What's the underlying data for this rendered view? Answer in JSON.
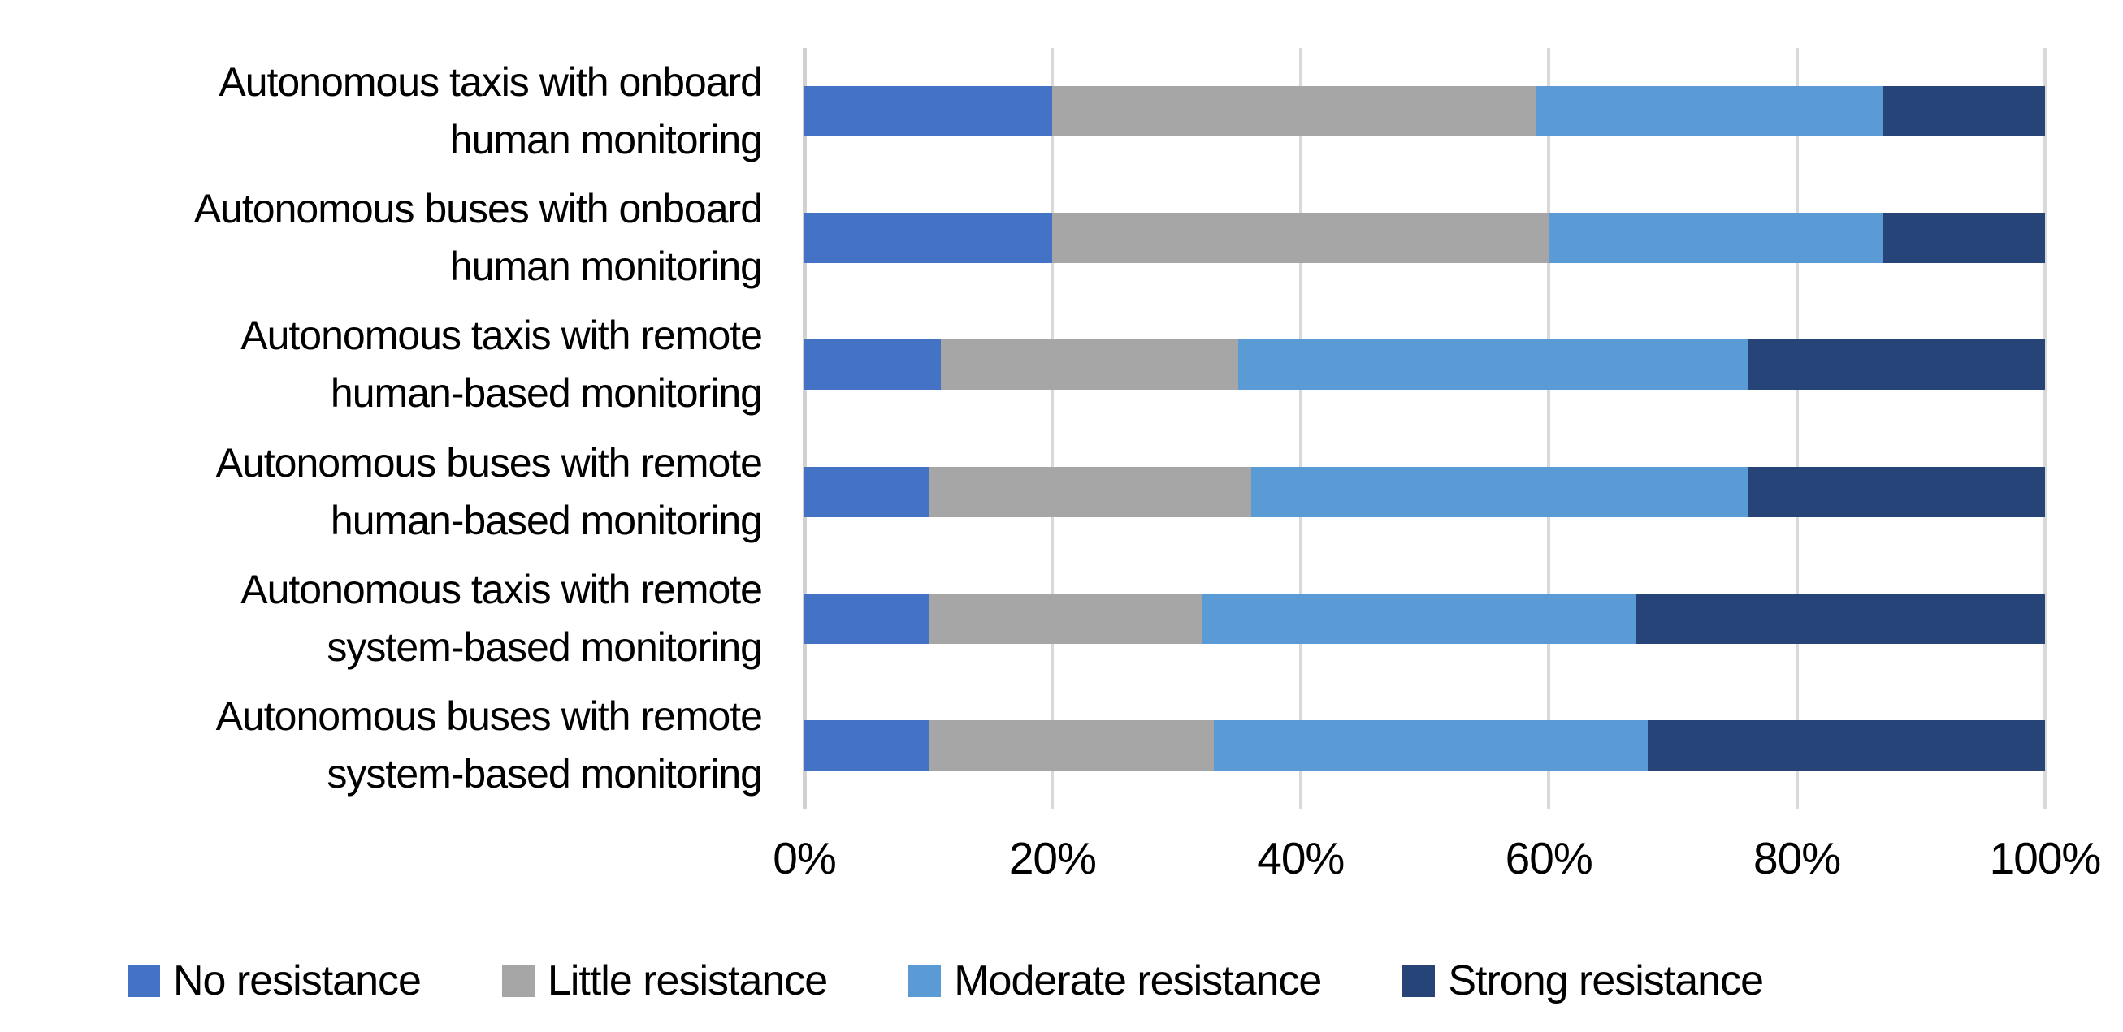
{
  "chart_data": {
    "type": "bar",
    "orientation": "horizontal",
    "stacked": true,
    "stack_total": 100,
    "title": "",
    "xlabel": "",
    "ylabel": "",
    "categories": [
      "Autonomous taxis with onboard human monitoring",
      "Autonomous buses with onboard human monitoring",
      "Autonomous taxis with remote human-based monitoring",
      "Autonomous buses with remote human-based monitoring",
      "Autonomous taxis with remote system-based monitoring",
      "Autonomous buses with remote system-based monitoring"
    ],
    "label_lines": [
      [
        "Autonomous taxis with onboard",
        "human monitoring"
      ],
      [
        "Autonomous buses with onboard",
        "human monitoring"
      ],
      [
        "Autonomous taxis with remote",
        "human-based monitoring"
      ],
      [
        "Autonomous buses with remote",
        "human-based monitoring"
      ],
      [
        "Autonomous taxis with remote",
        "system-based monitoring"
      ],
      [
        "Autonomous buses with remote",
        "system-based monitoring"
      ]
    ],
    "series": [
      {
        "name": "No resistance",
        "color": "#4472C4",
        "values": [
          20,
          20,
          11,
          10,
          10,
          10
        ]
      },
      {
        "name": "Little resistance",
        "color": "#A6A6A6",
        "values": [
          39,
          40,
          24,
          26,
          22,
          23
        ]
      },
      {
        "name": "Moderate resistance",
        "color": "#5B9BD5",
        "values": [
          28,
          27,
          41,
          40,
          35,
          35
        ]
      },
      {
        "name": "Strong resistance",
        "color": "#264478",
        "values": [
          13,
          13,
          24,
          24,
          33,
          32
        ]
      }
    ],
    "x_ticks": [
      "0%",
      "20%",
      "40%",
      "60%",
      "80%",
      "100%"
    ],
    "x_tick_values": [
      0,
      20,
      40,
      60,
      80,
      100
    ],
    "xlim": [
      0,
      100
    ],
    "grid": "vertical",
    "gridline_color": "#D9D9D9",
    "legend_position": "bottom",
    "background": "#FFFFFF",
    "text_color": "#000000"
  }
}
